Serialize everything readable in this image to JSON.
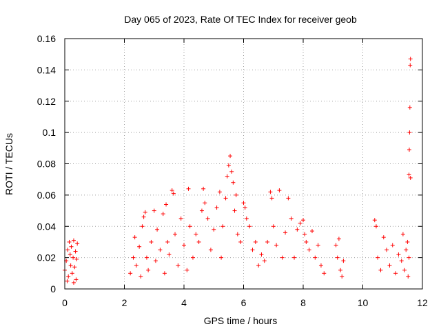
{
  "chart_data": {
    "type": "scatter",
    "title": "Day 065 of 2023, Rate Of TEC Index for receiver geob",
    "xlabel": "GPS time / hours",
    "ylabel": "ROTI / TECUs",
    "xlim": [
      0,
      12
    ],
    "ylim": [
      0,
      0.16
    ],
    "xticks": [
      0,
      2,
      4,
      6,
      8,
      10,
      12
    ],
    "yticks": [
      0,
      0.02,
      0.04,
      0.06,
      0.08,
      0.1,
      0.12,
      0.14,
      0.16
    ],
    "xtick_labels": [
      "0",
      "2",
      "4",
      "6",
      "8",
      "10",
      "12"
    ],
    "ytick_labels": [
      "0",
      "0.02",
      "0.04",
      "0.06",
      "0.08",
      "0.1",
      "0.12",
      "0.14",
      "0.16"
    ],
    "grid": true,
    "marker": "+",
    "color": "#ff0000",
    "series": [
      {
        "name": "ROTI",
        "points": [
          [
            0.0,
            0.012
          ],
          [
            0.05,
            0.018
          ],
          [
            0.1,
            0.025
          ],
          [
            0.12,
            0.008
          ],
          [
            0.15,
            0.03
          ],
          [
            0.18,
            0.022
          ],
          [
            0.2,
            0.015
          ],
          [
            0.22,
            0.027
          ],
          [
            0.25,
            0.01
          ],
          [
            0.28,
            0.02
          ],
          [
            0.3,
            0.031
          ],
          [
            0.33,
            0.014
          ],
          [
            0.36,
            0.024
          ],
          [
            0.38,
            0.006
          ],
          [
            0.4,
            0.019
          ],
          [
            0.42,
            0.029
          ],
          [
            0.08,
            0.005
          ],
          [
            0.3,
            0.004
          ],
          [
            2.2,
            0.01
          ],
          [
            2.3,
            0.02
          ],
          [
            2.35,
            0.033
          ],
          [
            2.4,
            0.015
          ],
          [
            2.5,
            0.027
          ],
          [
            2.55,
            0.008
          ],
          [
            2.6,
            0.04
          ],
          [
            2.65,
            0.046
          ],
          [
            2.7,
            0.049
          ],
          [
            2.75,
            0.02
          ],
          [
            2.8,
            0.012
          ],
          [
            2.9,
            0.03
          ],
          [
            3.0,
            0.05
          ],
          [
            3.05,
            0.018
          ],
          [
            3.1,
            0.038
          ],
          [
            3.2,
            0.025
          ],
          [
            3.3,
            0.048
          ],
          [
            3.35,
            0.01
          ],
          [
            3.4,
            0.054
          ],
          [
            3.45,
            0.03
          ],
          [
            3.5,
            0.022
          ],
          [
            3.6,
            0.063
          ],
          [
            3.65,
            0.061
          ],
          [
            3.7,
            0.035
          ],
          [
            3.8,
            0.015
          ],
          [
            3.9,
            0.045
          ],
          [
            4.0,
            0.028
          ],
          [
            4.1,
            0.012
          ],
          [
            4.15,
            0.064
          ],
          [
            4.2,
            0.04
          ],
          [
            4.3,
            0.02
          ],
          [
            4.4,
            0.035
          ],
          [
            4.5,
            0.03
          ],
          [
            4.6,
            0.05
          ],
          [
            4.65,
            0.064
          ],
          [
            4.7,
            0.055
          ],
          [
            4.8,
            0.045
          ],
          [
            4.9,
            0.025
          ],
          [
            5.0,
            0.038
          ],
          [
            5.1,
            0.052
          ],
          [
            5.2,
            0.062
          ],
          [
            5.25,
            0.02
          ],
          [
            5.3,
            0.04
          ],
          [
            5.4,
            0.058
          ],
          [
            5.45,
            0.072
          ],
          [
            5.5,
            0.079
          ],
          [
            5.55,
            0.085
          ],
          [
            5.6,
            0.075
          ],
          [
            5.65,
            0.068
          ],
          [
            5.7,
            0.05
          ],
          [
            5.75,
            0.06
          ],
          [
            5.8,
            0.035
          ],
          [
            5.9,
            0.03
          ],
          [
            6.0,
            0.055
          ],
          [
            6.05,
            0.052
          ],
          [
            6.1,
            0.045
          ],
          [
            6.2,
            0.04
          ],
          [
            6.3,
            0.025
          ],
          [
            6.4,
            0.03
          ],
          [
            6.5,
            0.015
          ],
          [
            6.6,
            0.022
          ],
          [
            6.7,
            0.018
          ],
          [
            6.8,
            0.03
          ],
          [
            6.9,
            0.062
          ],
          [
            6.95,
            0.058
          ],
          [
            7.0,
            0.04
          ],
          [
            7.1,
            0.028
          ],
          [
            7.2,
            0.063
          ],
          [
            7.3,
            0.02
          ],
          [
            7.4,
            0.036
          ],
          [
            7.5,
            0.058
          ],
          [
            7.6,
            0.045
          ],
          [
            7.7,
            0.02
          ],
          [
            7.8,
            0.038
          ],
          [
            7.9,
            0.042
          ],
          [
            8.0,
            0.044
          ],
          [
            8.05,
            0.035
          ],
          [
            8.1,
            0.03
          ],
          [
            8.2,
            0.025
          ],
          [
            8.3,
            0.037
          ],
          [
            8.4,
            0.02
          ],
          [
            8.5,
            0.028
          ],
          [
            8.6,
            0.015
          ],
          [
            8.7,
            0.01
          ],
          [
            9.1,
            0.028
          ],
          [
            9.15,
            0.02
          ],
          [
            9.2,
            0.032
          ],
          [
            9.25,
            0.012
          ],
          [
            9.3,
            0.008
          ],
          [
            9.35,
            0.018
          ],
          [
            10.4,
            0.044
          ],
          [
            10.45,
            0.04
          ],
          [
            10.5,
            0.02
          ],
          [
            10.6,
            0.012
          ],
          [
            10.7,
            0.033
          ],
          [
            10.8,
            0.025
          ],
          [
            10.9,
            0.015
          ],
          [
            11.0,
            0.028
          ],
          [
            11.1,
            0.01
          ],
          [
            11.2,
            0.022
          ],
          [
            11.3,
            0.018
          ],
          [
            11.35,
            0.035
          ],
          [
            11.4,
            0.012
          ],
          [
            11.45,
            0.025
          ],
          [
            11.5,
            0.03
          ],
          [
            11.55,
            0.073
          ],
          [
            11.56,
            0.089
          ],
          [
            11.57,
            0.1
          ],
          [
            11.58,
            0.116
          ],
          [
            11.59,
            0.143
          ],
          [
            11.6,
            0.147
          ],
          [
            11.6,
            0.071
          ],
          [
            11.55,
            0.02
          ],
          [
            11.52,
            0.008
          ]
        ]
      }
    ]
  }
}
